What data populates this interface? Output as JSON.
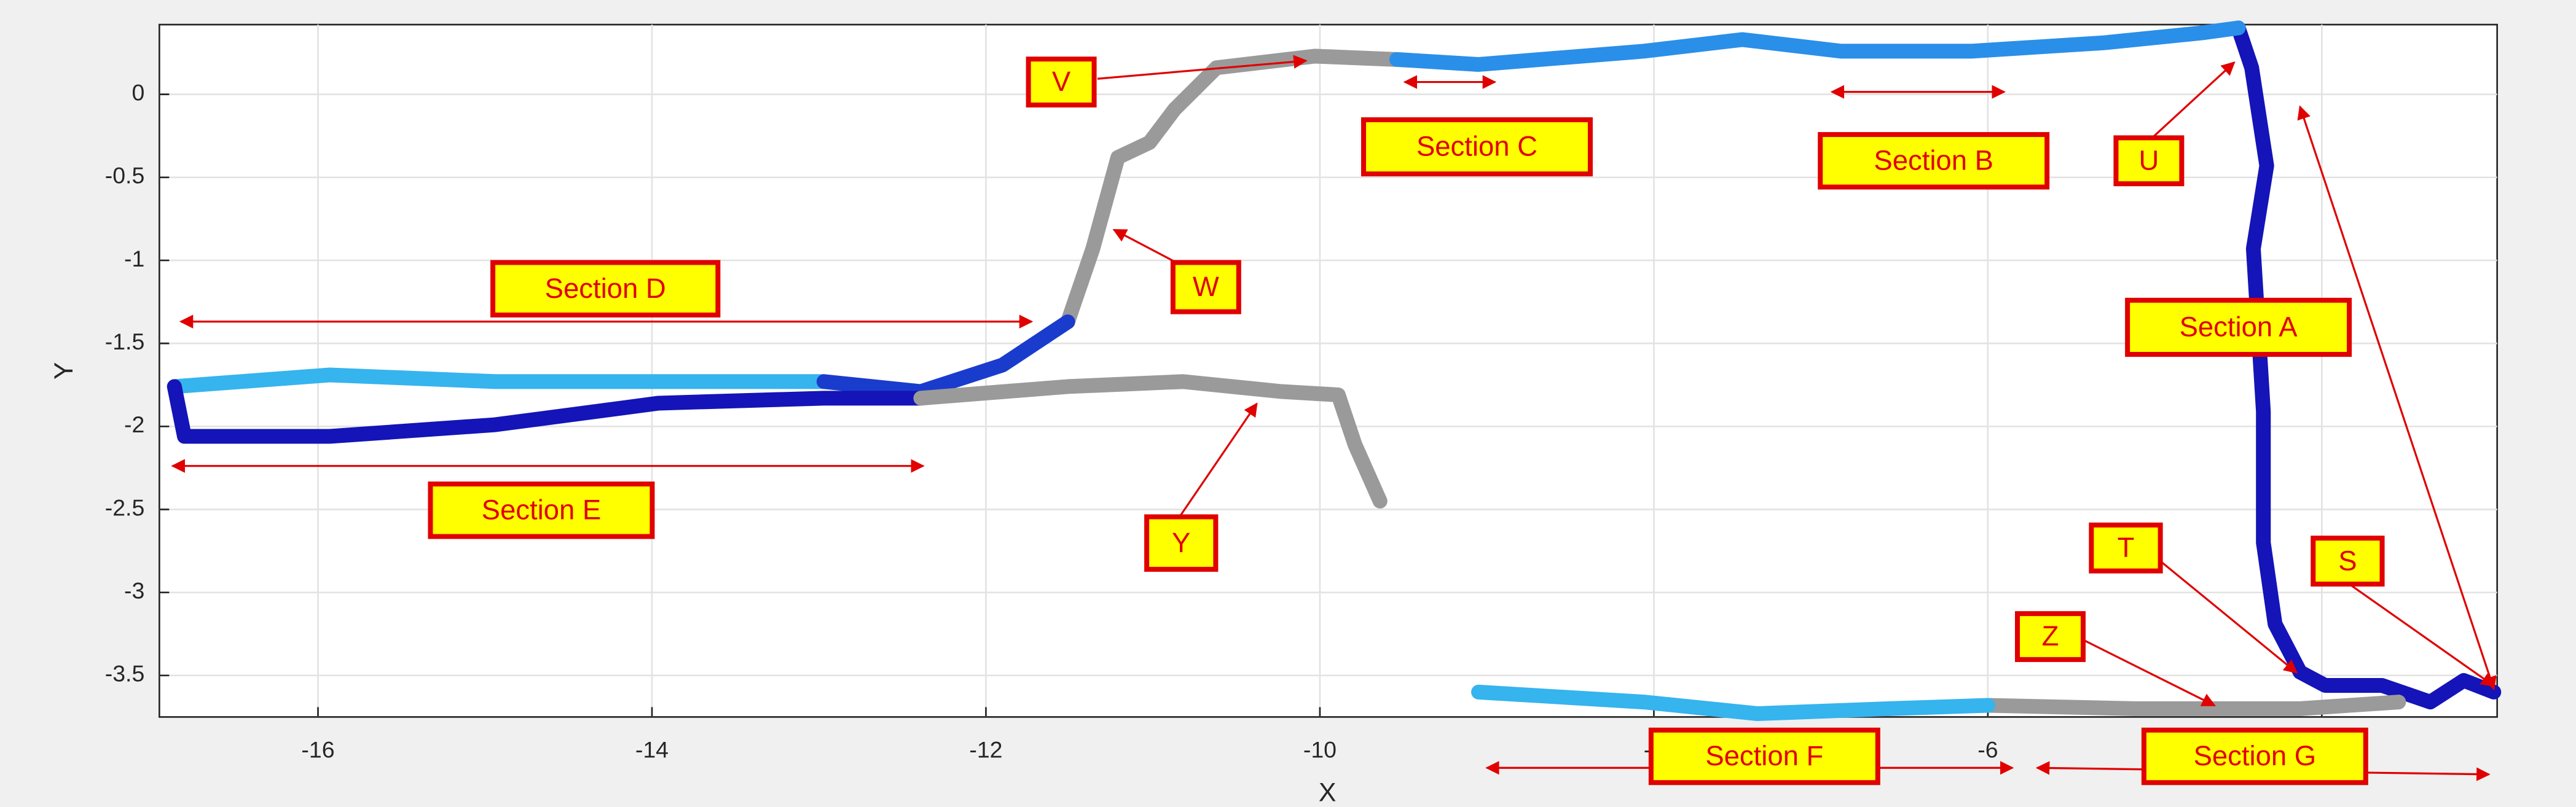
{
  "chart_data": {
    "type": "line",
    "xlabel": "X",
    "ylabel": "Y",
    "xlim": [
      -16.95,
      -2.95
    ],
    "ylim": [
      -3.75,
      0.42
    ],
    "xticks": [
      -16,
      -14,
      -12,
      -10,
      -8,
      -6,
      -4
    ],
    "yticks": [
      0,
      -0.5,
      -1,
      -1.5,
      -2,
      -2.5,
      -3,
      -3.5
    ],
    "grid": true,
    "series": [
      {
        "color": "#1414b8",
        "x": [
          -4.5,
          -4.42,
          -4.33,
          -4.41,
          -4.35,
          -4.35,
          -4.28,
          -4.13,
          -3.98,
          -3.64,
          -3.35,
          -3.15,
          -2.97
        ],
        "values": [
          0.4,
          0.16,
          -0.43,
          -0.93,
          -1.91,
          -2.7,
          -3.19,
          -3.48,
          -3.56,
          -3.56,
          -3.66,
          -3.53,
          -3.6
        ]
      },
      {
        "color": "#9a9a9a",
        "x": [
          -6.0,
          -5.12,
          -4.13,
          -3.54
        ],
        "values": [
          -3.68,
          -3.7,
          -3.7,
          -3.66
        ]
      },
      {
        "color": "#35b4ee",
        "x": [
          -9.05,
          -8.06,
          -7.38,
          -6.59,
          -6.0
        ],
        "values": [
          -3.6,
          -3.66,
          -3.73,
          -3.7,
          -3.68
        ]
      },
      {
        "color": "#9a9a9a",
        "x": [
          -11.51,
          -11.36,
          -11.21,
          -11.02,
          -10.87,
          -10.62,
          -10.03,
          -9.54
        ],
        "values": [
          -1.37,
          -0.93,
          -0.38,
          -0.29,
          -0.09,
          0.16,
          0.23,
          0.21
        ]
      },
      {
        "color": "#2a8fe8",
        "x": [
          -9.54,
          -9.05,
          -8.06,
          -7.47,
          -6.88,
          -6.1,
          -5.31,
          -4.72,
          -4.5
        ],
        "values": [
          0.21,
          0.18,
          0.26,
          0.33,
          0.26,
          0.26,
          0.31,
          0.37,
          0.4
        ]
      },
      {
        "color": "#35b4ee",
        "x": [
          -16.86,
          -15.93,
          -14.94,
          -13.96,
          -12.97
        ],
        "values": [
          -1.76,
          -1.69,
          -1.73,
          -1.73,
          -1.73
        ]
      },
      {
        "color": "#1a3ccc",
        "x": [
          -12.97,
          -12.39,
          -11.9,
          -11.51
        ],
        "values": [
          -1.73,
          -1.79,
          -1.63,
          -1.37
        ]
      },
      {
        "color": "#1414b8",
        "x": [
          -16.86,
          -16.8,
          -15.93,
          -14.94,
          -13.96,
          -12.97,
          -12.39
        ],
        "values": [
          -1.76,
          -2.06,
          -2.06,
          -1.99,
          -1.86,
          -1.83,
          -1.83
        ]
      },
      {
        "color": "#9a9a9a",
        "x": [
          -12.39,
          -11.51,
          -10.82,
          -10.23,
          -9.89,
          -9.79,
          -9.64
        ],
        "values": [
          -1.83,
          -1.76,
          -1.73,
          -1.79,
          -1.81,
          -2.11,
          -2.45
        ]
      }
    ],
    "annotations": [
      "V",
      "Section C",
      "Section B",
      "U",
      "Section A",
      "W",
      "Section D",
      "Section E",
      "Y",
      "T",
      "S",
      "Z",
      "Section F",
      "Section G"
    ]
  }
}
